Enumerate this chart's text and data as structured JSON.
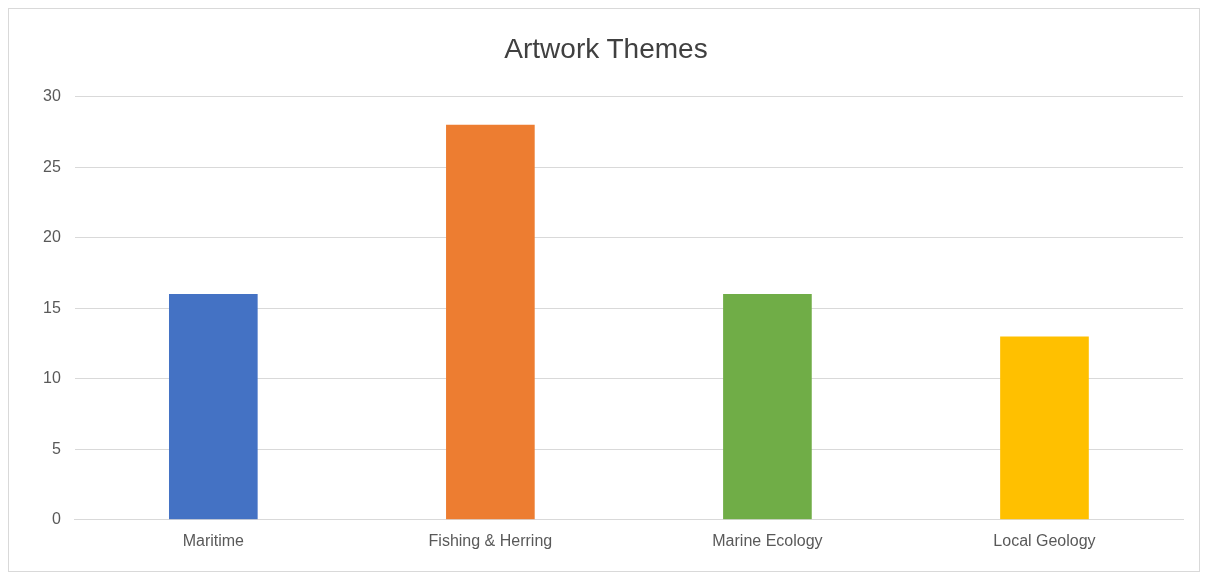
{
  "chart_data": {
    "type": "bar",
    "title": "Artwork Themes",
    "categories": [
      "Maritime",
      "Fishing & Herring",
      "Marine Ecology",
      "Local Geology"
    ],
    "values": [
      16,
      28,
      16,
      13
    ],
    "colors": [
      "#4472c4",
      "#ed7d31",
      "#70ad47",
      "#ffc000"
    ],
    "ylim": [
      0,
      30
    ],
    "yticks": [
      0,
      5,
      10,
      15,
      20,
      25,
      30
    ],
    "grid": "y"
  }
}
